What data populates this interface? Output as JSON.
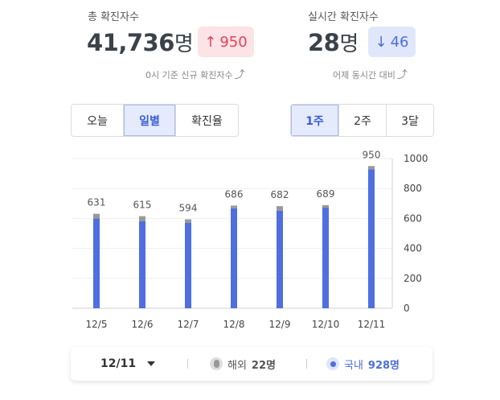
{
  "total": {
    "label": "총 확진자수",
    "value": "41,736",
    "unit": "명",
    "delta_arrow": "↑",
    "delta": "950",
    "note": "0시 기준 신규 확진자수",
    "note_icon": "curved-arrow-icon"
  },
  "realtime": {
    "label": "실시간 확진자수",
    "value": "28",
    "unit": "명",
    "delta_arrow": "↓",
    "delta": "46",
    "note": "어제 동시간 대비",
    "note_icon": "curved-arrow-icon"
  },
  "view_tabs": [
    "오늘",
    "일별",
    "확진율"
  ],
  "view_active": 1,
  "period_tabs": [
    "1주",
    "2주",
    "3달"
  ],
  "period_active": 0,
  "chart_data": {
    "type": "bar",
    "categories": [
      "12/5",
      "12/6",
      "12/7",
      "12/8",
      "12/9",
      "12/10",
      "12/11"
    ],
    "totals": [
      631,
      615,
      594,
      686,
      682,
      689,
      950
    ],
    "series": [
      {
        "name": "해외",
        "values": [
          31,
          33,
          24,
          18,
          30,
          17,
          22
        ],
        "color": "#999999"
      },
      {
        "name": "국내",
        "values": [
          600,
          582,
          570,
          668,
          652,
          672,
          928
        ],
        "color": "#4f6ee0"
      }
    ],
    "ylim": [
      0,
      1000
    ],
    "yticks": [
      "0",
      "200",
      "400",
      "600",
      "800",
      "1000"
    ],
    "grid": true,
    "yaxis_side": "right"
  },
  "footer": {
    "date": "12/11",
    "overseas_label": "해외",
    "overseas_value": "22명",
    "domestic_label": "국내",
    "domestic_value": "928명"
  },
  "colors": {
    "accent": "#4f6ee0",
    "up": "#e6405a",
    "overseas": "#999999"
  }
}
